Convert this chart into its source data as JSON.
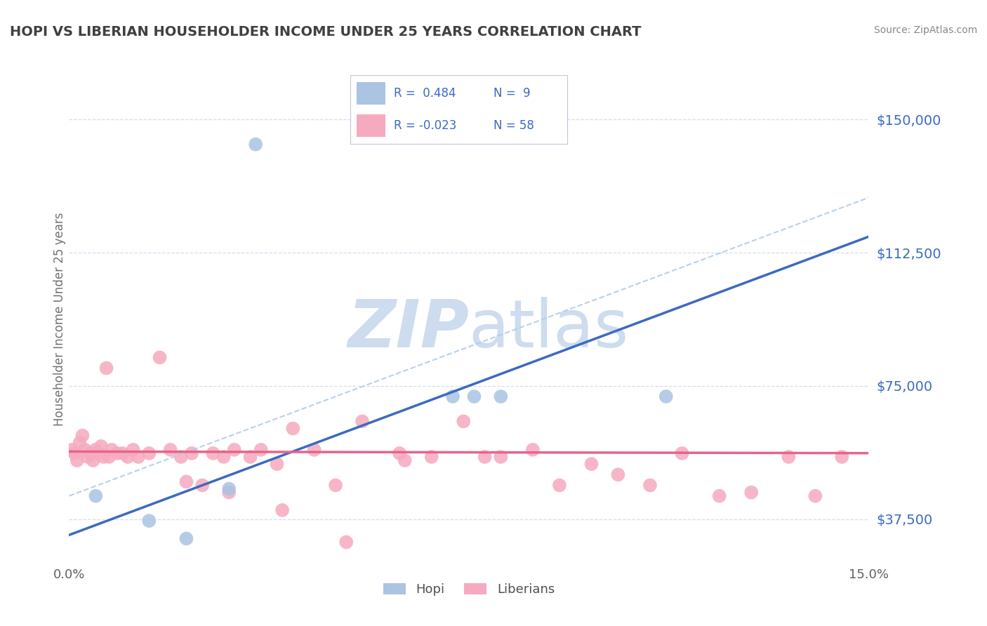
{
  "title": "HOPI VS LIBERIAN HOUSEHOLDER INCOME UNDER 25 YEARS CORRELATION CHART",
  "source": "Source: ZipAtlas.com",
  "ylabel": "Householder Income Under 25 years",
  "xlim": [
    0.0,
    15.0
  ],
  "ylim": [
    25000,
    162500
  ],
  "yticks": [
    37500,
    75000,
    112500,
    150000
  ],
  "ytick_labels": [
    "$37,500",
    "$75,000",
    "$112,500",
    "$150,000"
  ],
  "hopi_R": 0.484,
  "hopi_N": 9,
  "liberian_R": -0.023,
  "liberian_N": 58,
  "hopi_color": "#aac4e2",
  "liberian_color": "#f5aabf",
  "hopi_line_color": "#3b6abf",
  "liberian_line_color": "#e8638a",
  "dashed_line_color": "#b0cce8",
  "watermark_color": "#cddcee",
  "background_color": "#ffffff",
  "grid_color": "#d0daea",
  "title_color": "#404040",
  "ylabel_color": "#707070",
  "tick_label_color": "#3b6abf",
  "xtick_color": "#606060",
  "legend_r_color": "#3b6abf",
  "source_color": "#888888",
  "hopi_line_intercept": 33000,
  "hopi_line_slope": 5600,
  "liberian_line_intercept": 56500,
  "liberian_line_slope": -30,
  "dashed_line_intercept": 44000,
  "dashed_line_slope": 5600,
  "hopi_points_x": [
    0.5,
    1.5,
    2.2,
    3.0,
    3.5,
    7.2,
    7.6,
    8.1,
    11.2
  ],
  "hopi_points_y": [
    44000,
    37000,
    32000,
    46000,
    143000,
    72000,
    72000,
    72000,
    72000
  ],
  "liberian_points_x": [
    0.05,
    0.1,
    0.15,
    0.2,
    0.25,
    0.3,
    0.35,
    0.4,
    0.45,
    0.5,
    0.55,
    0.6,
    0.65,
    0.7,
    0.75,
    0.8,
    0.9,
    1.0,
    1.1,
    1.2,
    1.3,
    1.5,
    1.7,
    1.9,
    2.1,
    2.3,
    2.5,
    2.7,
    2.9,
    3.1,
    3.4,
    3.6,
    3.9,
    4.2,
    4.6,
    5.0,
    5.5,
    6.2,
    6.8,
    7.4,
    8.1,
    8.7,
    9.2,
    9.8,
    10.3,
    10.9,
    11.5,
    12.2,
    12.8,
    13.5,
    14.0,
    14.5,
    2.2,
    3.0,
    4.0,
    5.2,
    6.3,
    7.8
  ],
  "liberian_points_y": [
    57000,
    56000,
    54000,
    59000,
    61000,
    57000,
    55000,
    56000,
    54000,
    57000,
    56000,
    58000,
    55000,
    80000,
    55000,
    57000,
    56000,
    56000,
    55000,
    57000,
    55000,
    56000,
    83000,
    57000,
    55000,
    56000,
    47000,
    56000,
    55000,
    57000,
    55000,
    57000,
    53000,
    63000,
    57000,
    47000,
    65000,
    56000,
    55000,
    65000,
    55000,
    57000,
    47000,
    53000,
    50000,
    47000,
    56000,
    44000,
    45000,
    55000,
    44000,
    55000,
    48000,
    45000,
    40000,
    31000,
    54000,
    55000
  ]
}
